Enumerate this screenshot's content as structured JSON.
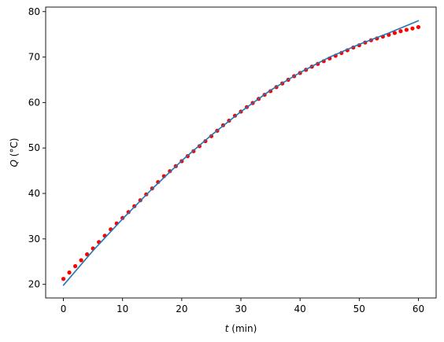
{
  "chart_data": {
    "type": "scatter",
    "title": "",
    "xlabel": {
      "symbol": "t",
      "unit": " (min)"
    },
    "ylabel": {
      "symbol": "Q",
      "unit": " (°C)"
    },
    "xlim": [
      -3,
      63
    ],
    "ylim": [
      17,
      81
    ],
    "xticks": [
      0,
      10,
      20,
      30,
      40,
      50,
      60
    ],
    "yticks": [
      20,
      30,
      40,
      50,
      60,
      70,
      80
    ],
    "grid": false,
    "legend": "none",
    "series": [
      {
        "kind": "points",
        "color": "#ff0000",
        "x": [
          0,
          1,
          2,
          3,
          4,
          5,
          6,
          7,
          8,
          9,
          10,
          11,
          12,
          13,
          14,
          15,
          16,
          17,
          18,
          19,
          20,
          21,
          22,
          23,
          24,
          25,
          26,
          27,
          28,
          29,
          30,
          31,
          32,
          33,
          34,
          35,
          36,
          37,
          38,
          39,
          40,
          41,
          42,
          43,
          44,
          45,
          46,
          47,
          48,
          49,
          50,
          51,
          52,
          53,
          54,
          55,
          56,
          57,
          58,
          59,
          60
        ],
        "y": [
          21.2,
          22.6,
          24.0,
          25.3,
          26.6,
          27.9,
          29.3,
          30.7,
          32.1,
          33.4,
          34.6,
          35.9,
          37.2,
          38.5,
          39.8,
          41.1,
          42.5,
          43.8,
          44.9,
          46.0,
          47.1,
          48.2,
          49.3,
          50.4,
          51.5,
          52.6,
          53.8,
          55.0,
          56.0,
          57.1,
          58.0,
          59.0,
          59.9,
          60.8,
          61.7,
          62.5,
          63.4,
          64.2,
          65.0,
          65.8,
          66.5,
          67.2,
          67.9,
          68.5,
          69.1,
          69.7,
          70.3,
          70.9,
          71.5,
          72.1,
          72.6,
          73.2,
          73.7,
          74.1,
          74.5,
          74.9,
          75.3,
          75.7,
          76.0,
          76.3,
          76.6
        ]
      },
      {
        "kind": "line",
        "color": "#1f77b4",
        "x": [
          0,
          5,
          10,
          15,
          20,
          25,
          30,
          35,
          40,
          45,
          50,
          55,
          60
        ],
        "y": [
          19.8,
          27.4,
          34.4,
          41.0,
          47.2,
          52.8,
          58.0,
          62.7,
          66.6,
          70.0,
          72.8,
          75.3,
          78.0
        ]
      }
    ]
  }
}
